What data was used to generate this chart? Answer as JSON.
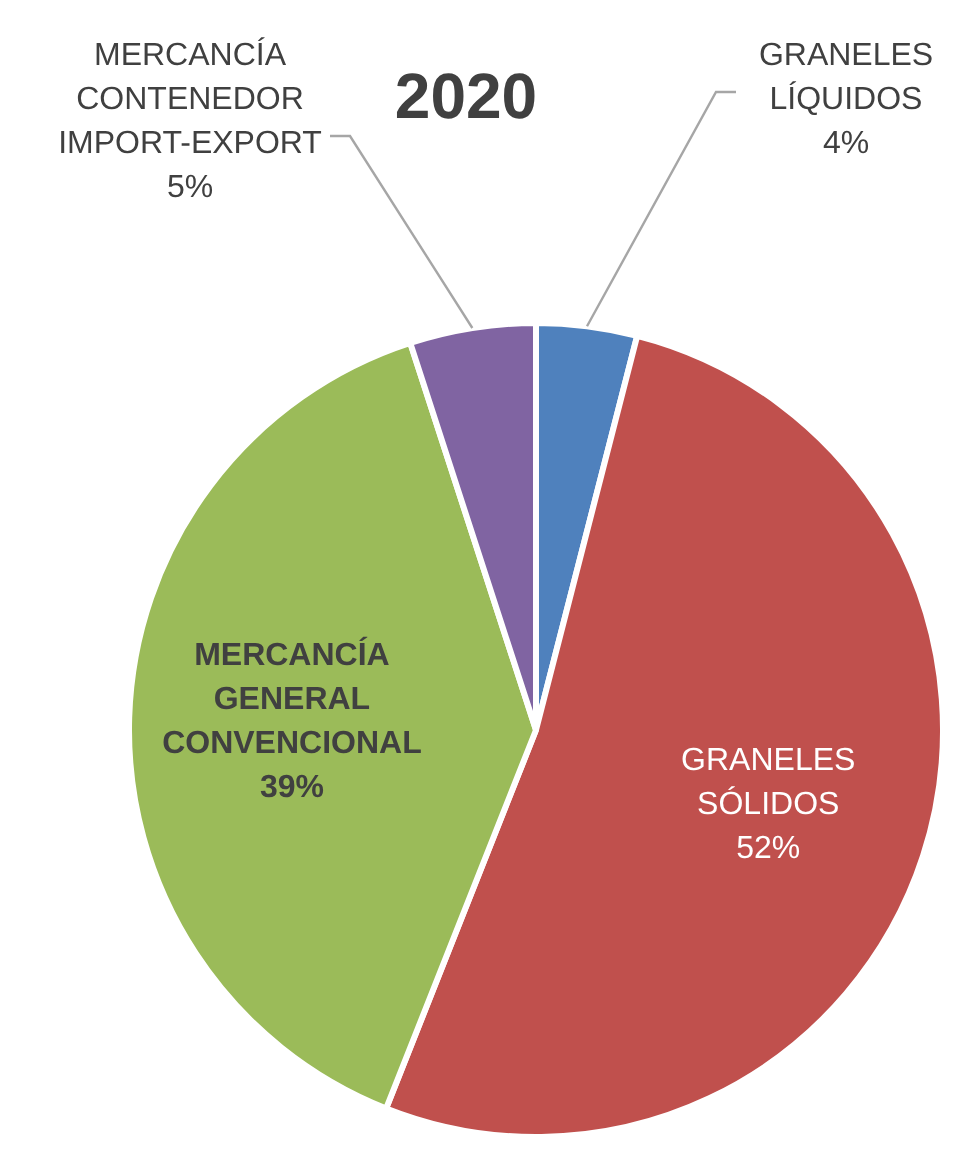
{
  "chart_data": {
    "type": "pie",
    "title": "2020",
    "categories": [
      "GRANELES LÍQUIDOS",
      "GRANELES SÓLIDOS",
      "MERCANCÍA GENERAL CONVENCIONAL",
      "MERCANCÍA CONTENEDOR IMPORT-EXPORT"
    ],
    "values": [
      4,
      52,
      39,
      5
    ],
    "colors": [
      "#4f81bd",
      "#c0504d",
      "#9bbb59",
      "#8064a2"
    ],
    "value_labels": [
      "4%",
      "52%",
      "39%",
      "5%"
    ],
    "legend": false
  }
}
